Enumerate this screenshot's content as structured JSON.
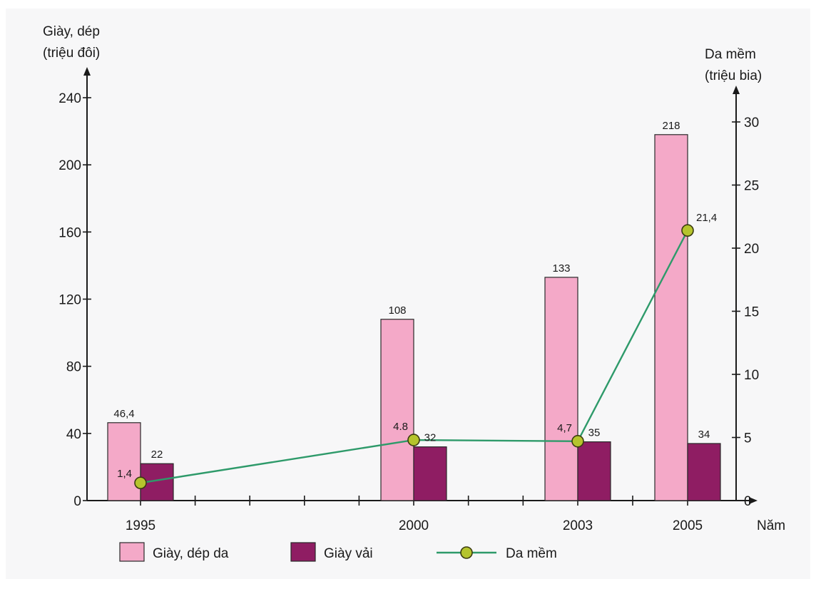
{
  "chart_data": {
    "type": "bar",
    "categories": [
      "1995",
      "2000",
      "2003",
      "2005"
    ],
    "xlabel": "Năm",
    "y_left": {
      "label_lines": [
        "Giày, dép",
        "(triệu đôi)"
      ],
      "ylim": [
        0,
        240
      ],
      "ticks": [
        "0",
        "40",
        "80",
        "120",
        "160",
        "200",
        "240"
      ]
    },
    "y_right": {
      "label_lines": [
        "Da mềm",
        "(triệu bia)"
      ],
      "ylim": [
        0,
        30
      ],
      "ticks": [
        "0",
        "5",
        "10",
        "15",
        "20",
        "25",
        "30"
      ]
    },
    "series": [
      {
        "name": "Giày, dép da",
        "type": "bar",
        "axis": "left",
        "color": "#f4a9c8",
        "values": [
          46.4,
          108,
          133,
          218
        ],
        "labels": [
          "46,4",
          "108",
          "133",
          "218"
        ]
      },
      {
        "name": "Giày vải",
        "type": "bar",
        "axis": "left",
        "color": "#8f1d63",
        "values": [
          22,
          32,
          35,
          34
        ],
        "labels": [
          "22",
          "32",
          "35",
          "34"
        ]
      },
      {
        "name": "Da mềm",
        "type": "line",
        "axis": "right",
        "color": "#2e9a6a",
        "marker_color": "#b5c42d",
        "values": [
          1.4,
          4.8,
          4.7,
          21.4
        ],
        "labels": [
          "1,4",
          "4.8",
          "4,7",
          "21,4"
        ]
      }
    ],
    "legend": {
      "placement": "bottom",
      "items": [
        "Giày, dép da",
        "Giày vải",
        "Da mềm"
      ]
    },
    "grid": false
  }
}
